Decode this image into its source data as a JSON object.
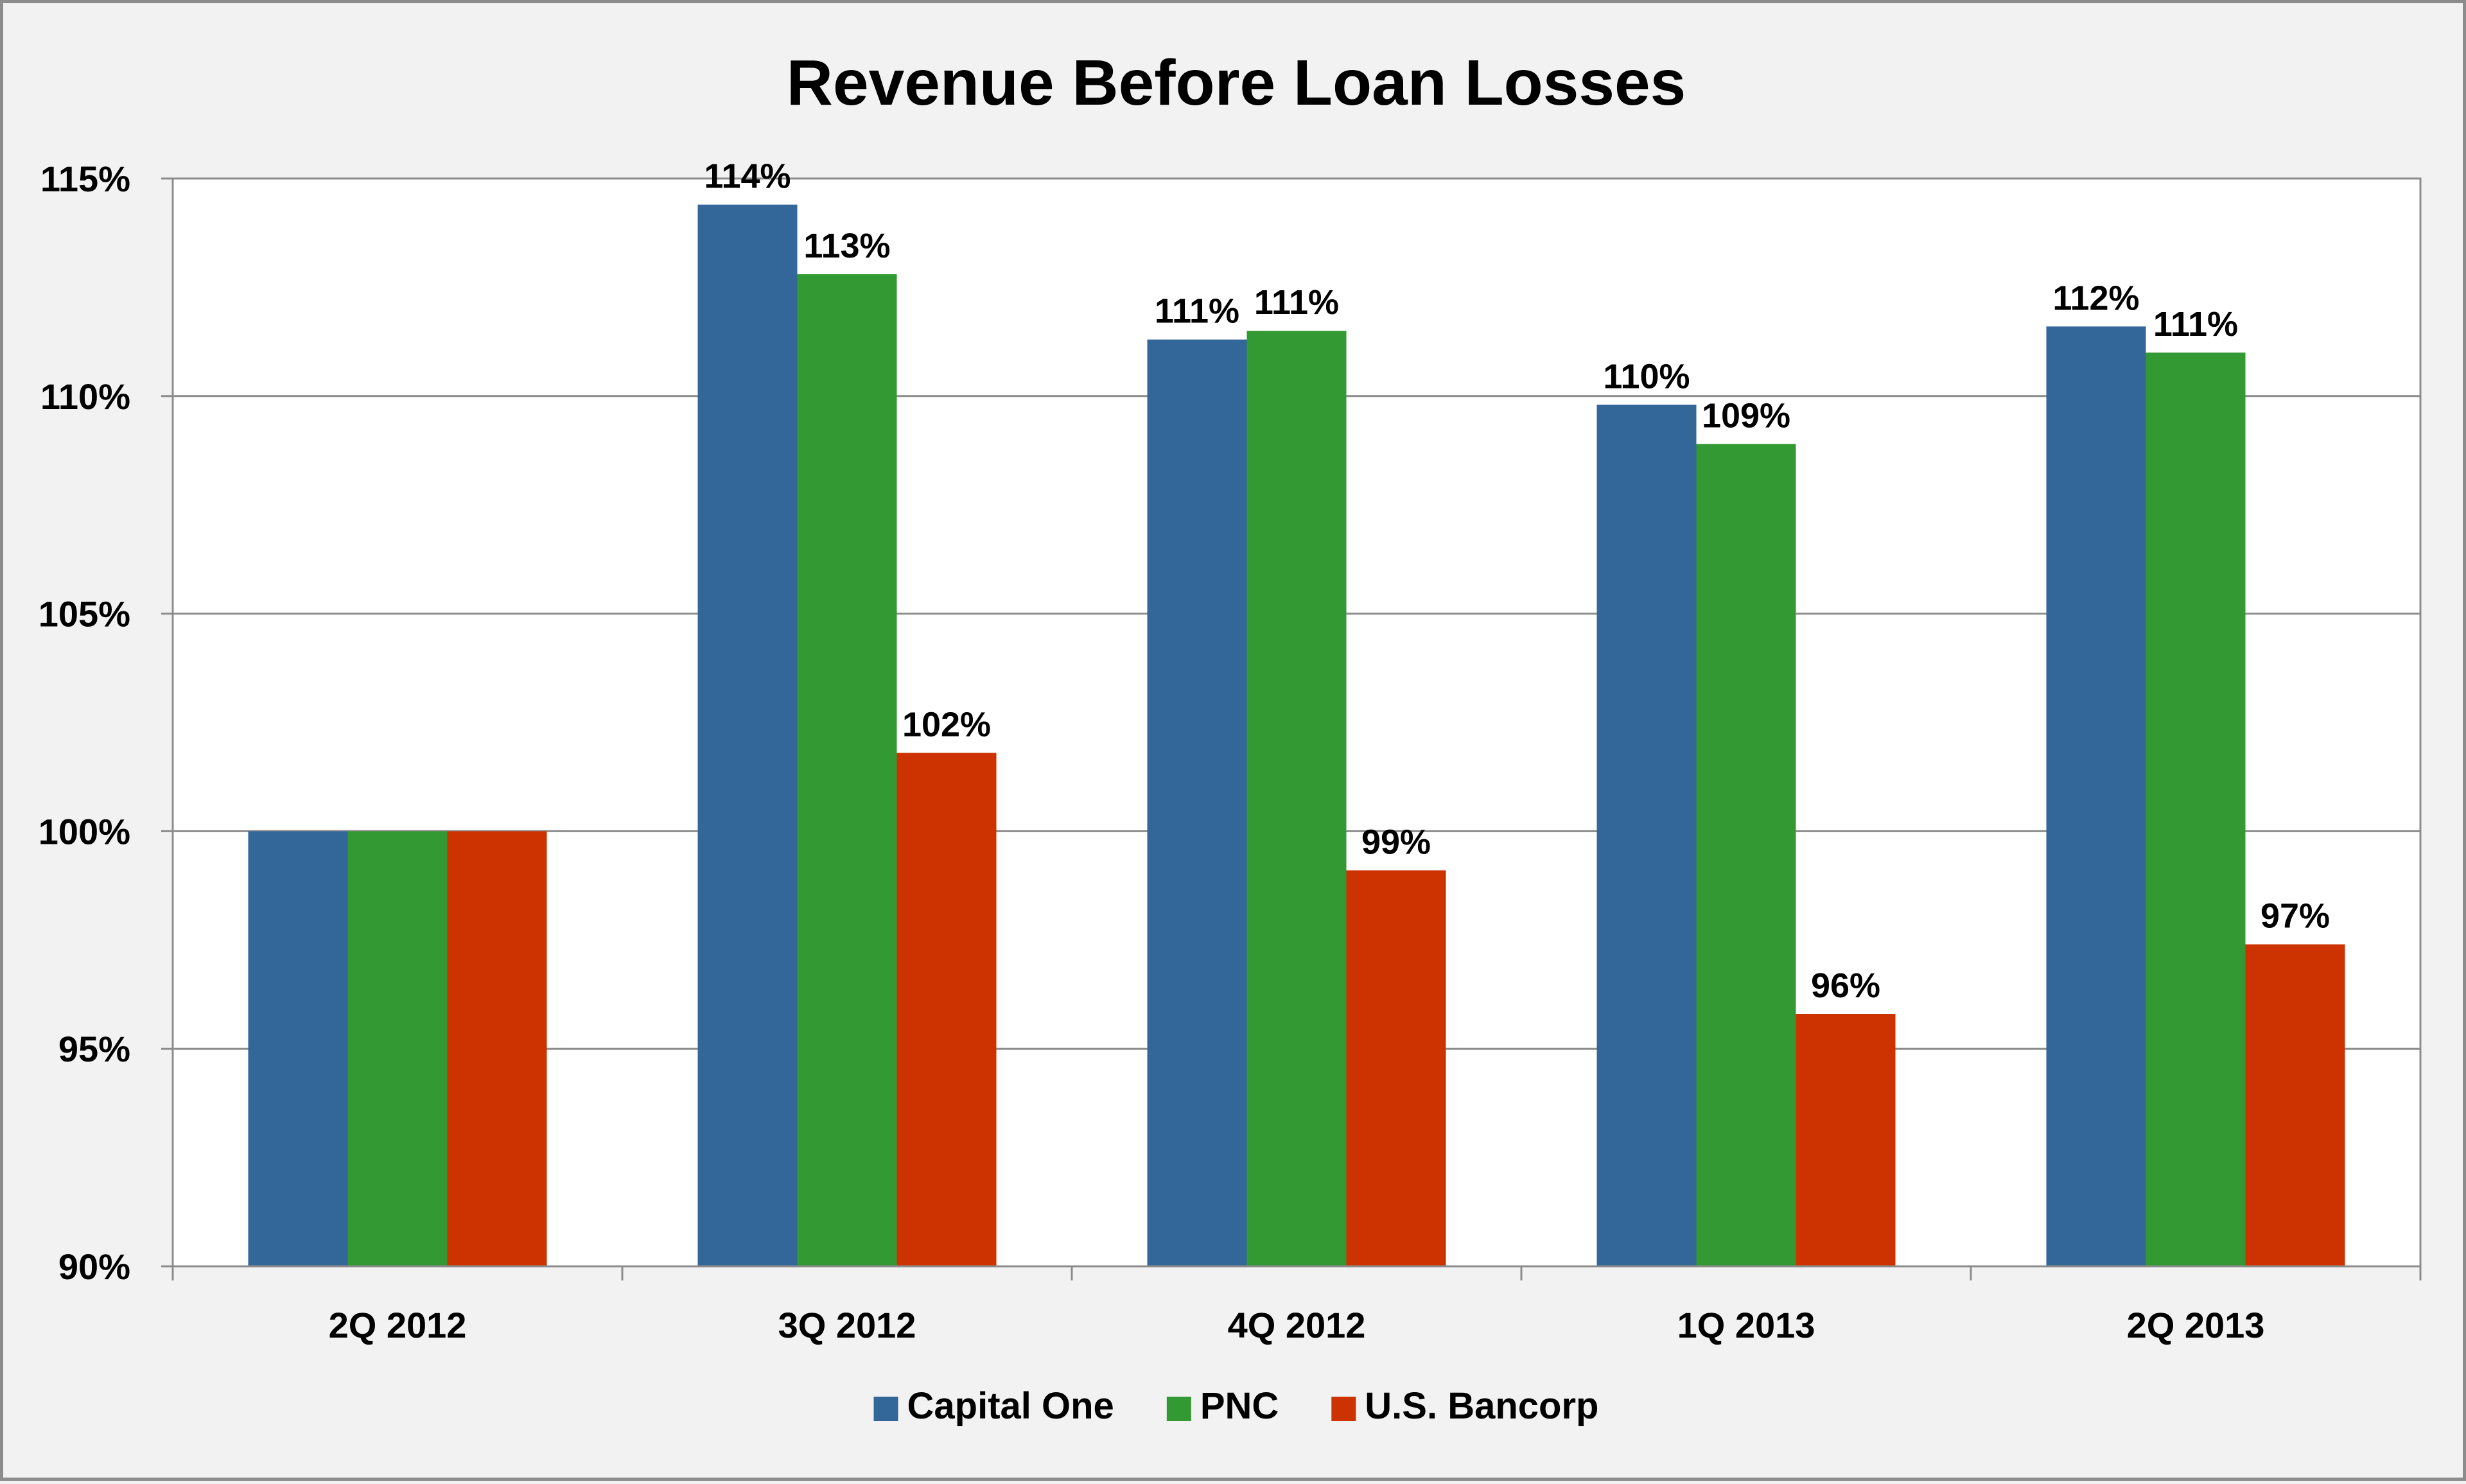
{
  "chart_data": {
    "type": "bar",
    "title": "Revenue Before Loan Losses",
    "xlabel": "",
    "ylabel": "",
    "categories": [
      "2Q 2012",
      "3Q 2012",
      "4Q 2012",
      "1Q 2013",
      "2Q 2013"
    ],
    "series": [
      {
        "name": "Capital One",
        "color": "#336699",
        "values": [
          100,
          114.4,
          111.3,
          109.8,
          111.6
        ],
        "labels": [
          "",
          "114%",
          "111%",
          "110%",
          "112%"
        ]
      },
      {
        "name": "PNC",
        "color": "#339933",
        "values": [
          100,
          112.8,
          111.5,
          108.9,
          111.0
        ],
        "labels": [
          "",
          "113%",
          "111%",
          "109%",
          "111%"
        ]
      },
      {
        "name": "U.S. Bancorp",
        "color": "#cc3300",
        "values": [
          100,
          101.8,
          99.1,
          95.8,
          97.4
        ],
        "labels": [
          "",
          "102%",
          "99%",
          "96%",
          "97%"
        ]
      }
    ],
    "ylim": [
      90,
      115
    ],
    "yticks": [
      90,
      95,
      100,
      105,
      110,
      115
    ],
    "ytick_labels": [
      "90%",
      "95%",
      "100%",
      "105%",
      "110%",
      "115%"
    ],
    "grid": true,
    "legend_position": "bottom"
  }
}
